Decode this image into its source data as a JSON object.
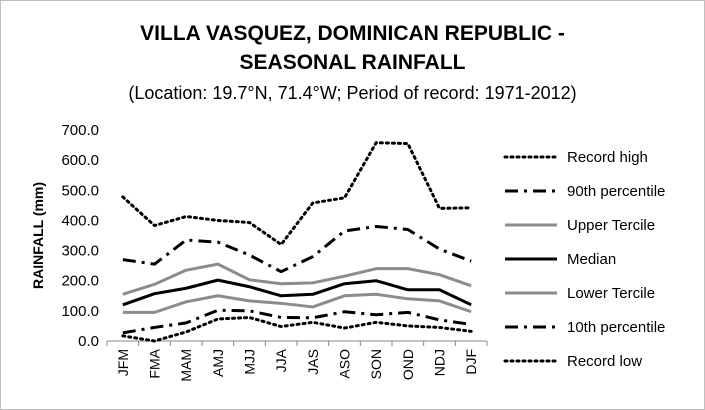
{
  "chart_data": {
    "type": "line",
    "title_line1": "VILLA VASQUEZ, DOMINICAN REPUBLIC -",
    "title_line2": "SEASONAL RAINFALL",
    "subtitle": "(Location: 19.7°N, 71.4°W; Period of record: 1971-2012)",
    "ylabel": "RAINFALL (mm)",
    "ylim": [
      0,
      700
    ],
    "yticks": [
      "0.0",
      "100.0",
      "200.0",
      "300.0",
      "400.0",
      "500.0",
      "600.0",
      "700.0"
    ],
    "categories": [
      "JFM",
      "FMA",
      "MAM",
      "AMJ",
      "MJJ",
      "JJA",
      "JAS",
      "ASO",
      "SON",
      "OND",
      "NDJ",
      "DJF"
    ],
    "legend_position": "right",
    "grid": false,
    "series": [
      {
        "name": "Record high",
        "color": "#000000",
        "style": "dotted",
        "values": [
          478,
          383,
          413,
          400,
          393,
          320,
          458,
          475,
          658,
          655,
          440,
          442
        ]
      },
      {
        "name": "90th percentile",
        "color": "#000000",
        "style": "dashdot",
        "values": [
          270,
          255,
          335,
          328,
          285,
          230,
          280,
          365,
          380,
          370,
          305,
          265
        ]
      },
      {
        "name": "Upper Tercile",
        "color": "#8c8c8c",
        "style": "solid",
        "values": [
          155,
          188,
          235,
          255,
          203,
          190,
          193,
          215,
          240,
          240,
          220,
          183
        ]
      },
      {
        "name": "Median",
        "color": "#000000",
        "style": "solid",
        "values": [
          120,
          157,
          175,
          202,
          180,
          150,
          155,
          190,
          200,
          170,
          170,
          120
        ]
      },
      {
        "name": "Lower Tercile",
        "color": "#8c8c8c",
        "style": "solid",
        "values": [
          95,
          95,
          130,
          150,
          133,
          125,
          113,
          150,
          155,
          140,
          133,
          97
        ]
      },
      {
        "name": "10th percentile",
        "color": "#000000",
        "style": "dashdot",
        "values": [
          27,
          45,
          60,
          102,
          100,
          78,
          77,
          97,
          87,
          95,
          70,
          55
        ]
      },
      {
        "name": "Record low",
        "color": "#000000",
        "style": "dotted",
        "values": [
          17,
          0,
          30,
          73,
          78,
          48,
          62,
          43,
          62,
          50,
          45,
          32
        ]
      }
    ]
  }
}
